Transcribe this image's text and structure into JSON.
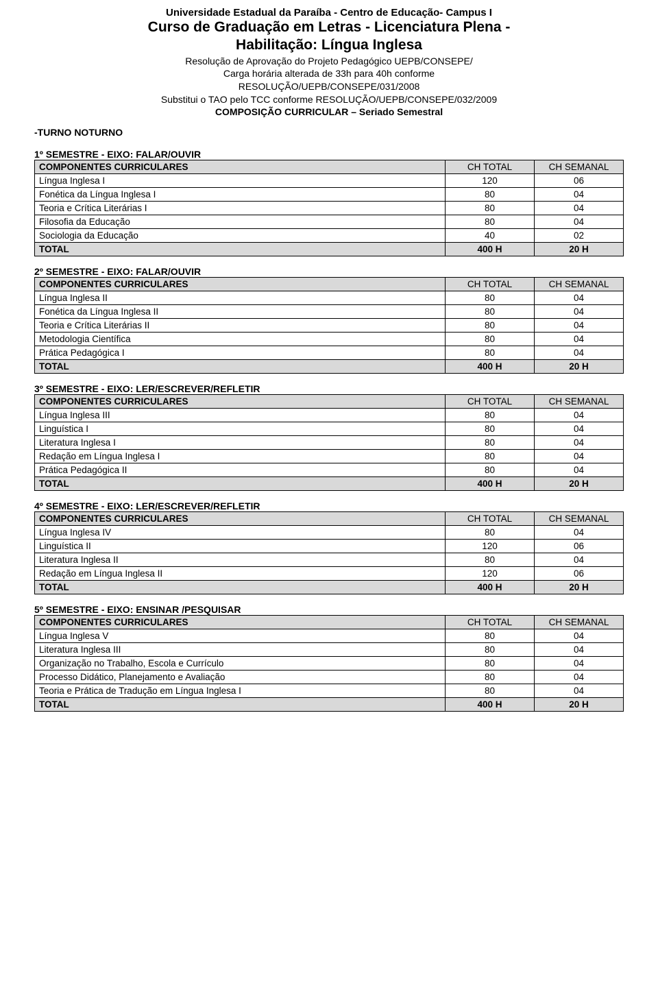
{
  "header": {
    "university": "Universidade Estadual da Paraíba - Centro de Educação- Campus I",
    "course_line1": "Curso de Graduação em Letras - Licenciatura Plena -",
    "course_line2": "Habilitação: Língua Inglesa",
    "reso_line1": "Resolução de Aprovação do Projeto Pedagógico UEPB/CONSEPE/",
    "reso_line2": "Carga horária alterada de 33h para 40h conforme",
    "reso_line3": "RESOLUÇÃO/UEPB/CONSEPE/031/2008",
    "reso_line4": "Substitui o TAO pelo TCC conforme RESOLUÇÃO/UEPB/CONSEPE/032/2009",
    "composition": "COMPOSIÇÃO CURRICULAR – Seriado Semestral"
  },
  "turno": "-TURNO NOTURNO",
  "col_headers": {
    "comp": "COMPONENTES CURRICULARES",
    "ch": "CH TOTAL",
    "sem": "CH SEMANAL"
  },
  "total_label": "TOTAL",
  "semesters": [
    {
      "title": "1º SEMESTRE - EIXO: FALAR/OUVIR",
      "rows": [
        {
          "name": "Língua Inglesa I",
          "ch": "120",
          "sem": "06"
        },
        {
          "name": "Fonética da Língua Inglesa I",
          "ch": "80",
          "sem": "04"
        },
        {
          "name": "Teoria e Crítica Literárias I",
          "ch": "80",
          "sem": "04"
        },
        {
          "name": "Filosofia da Educação",
          "ch": "80",
          "sem": "04"
        },
        {
          "name": "Sociologia da Educação",
          "ch": "40",
          "sem": "02"
        }
      ],
      "total_ch": "400 H",
      "total_sem": "20 H"
    },
    {
      "title": "2º SEMESTRE - EIXO: FALAR/OUVIR",
      "rows": [
        {
          "name": "Língua Inglesa II",
          "ch": "80",
          "sem": "04"
        },
        {
          "name": "Fonética da Língua Inglesa II",
          "ch": "80",
          "sem": "04"
        },
        {
          "name": "Teoria e Crítica Literárias II",
          "ch": "80",
          "sem": "04"
        },
        {
          "name": "Metodologia Científica",
          "ch": "80",
          "sem": "04"
        },
        {
          "name": "Prática Pedagógica I",
          "ch": "80",
          "sem": "04"
        }
      ],
      "total_ch": "400 H",
      "total_sem": "20 H"
    },
    {
      "title": "3º SEMESTRE - EIXO: LER/ESCREVER/REFLETIR",
      "rows": [
        {
          "name": "Língua Inglesa III",
          "ch": "80",
          "sem": "04"
        },
        {
          "name": "Linguística I",
          "ch": "80",
          "sem": "04"
        },
        {
          "name": "Literatura Inglesa I",
          "ch": "80",
          "sem": "04"
        },
        {
          "name": "Redação em Língua Inglesa I",
          "ch": "80",
          "sem": "04"
        },
        {
          "name": "Prática Pedagógica II",
          "ch": "80",
          "sem": "04"
        }
      ],
      "total_ch": "400 H",
      "total_sem": "20 H"
    },
    {
      "title": "4º SEMESTRE  - EIXO: LER/ESCREVER/REFLETIR",
      "rows": [
        {
          "name": "Língua Inglesa IV",
          "ch": "80",
          "sem": "04"
        },
        {
          "name": "Linguística II",
          "ch": "120",
          "sem": "06"
        },
        {
          "name": "Literatura Inglesa II",
          "ch": "80",
          "sem": "04"
        },
        {
          "name": "Redação em Língua Inglesa II",
          "ch": "120",
          "sem": "06"
        }
      ],
      "total_ch": "400 H",
      "total_sem": "20 H"
    },
    {
      "title": "5º SEMESTRE - EIXO: ENSINAR /PESQUISAR",
      "rows": [
        {
          "name": "Língua Inglesa V",
          "ch": "80",
          "sem": "04"
        },
        {
          "name": "Literatura Inglesa III",
          "ch": "80",
          "sem": "04"
        },
        {
          "name": "Organização no Trabalho, Escola e Currículo",
          "ch": "80",
          "sem": "04"
        },
        {
          "name": "Processo Didático, Planejamento e Avaliação",
          "ch": "80",
          "sem": "04"
        },
        {
          "name": "Teoria e Prática de Tradução em Língua Inglesa I",
          "ch": "80",
          "sem": "04"
        }
      ],
      "total_ch": "400 H",
      "total_sem": "20 H"
    }
  ]
}
